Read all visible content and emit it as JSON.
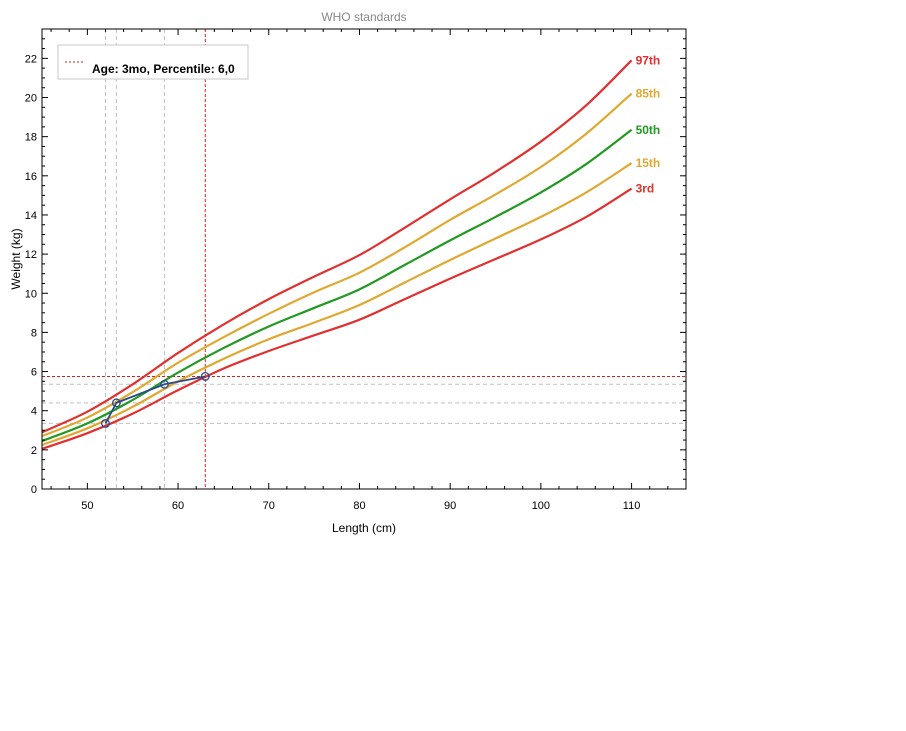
{
  "chart_data": {
    "type": "line",
    "title": "WHO standards",
    "xlabel": "Length (cm)",
    "ylabel": "Weight (kg)",
    "xlim": [
      45,
      116
    ],
    "ylim": [
      0,
      23.5
    ],
    "x_ticks": [
      50,
      60,
      70,
      80,
      90,
      100,
      110
    ],
    "y_ticks": [
      0,
      2,
      4,
      6,
      8,
      10,
      12,
      14,
      16,
      18,
      20,
      22
    ],
    "grid": false,
    "legend": {
      "position": "top-left",
      "entries": [
        "Age: 3mo, Percentile: 6,0"
      ]
    },
    "x": [
      45,
      50,
      55,
      60,
      65,
      70,
      75,
      80,
      85,
      90,
      95,
      100,
      105,
      110
    ],
    "series": [
      {
        "name": "97th",
        "color": "#e03030",
        "values": [
          2.9,
          3.95,
          5.35,
          6.95,
          8.4,
          9.7,
          10.85,
          11.95,
          13.35,
          14.8,
          16.2,
          17.75,
          19.6,
          21.9
        ]
      },
      {
        "name": "85th",
        "color": "#e0a830",
        "values": [
          2.7,
          3.65,
          4.95,
          6.45,
          7.75,
          8.95,
          10.05,
          11.05,
          12.35,
          13.75,
          15.05,
          16.45,
          18.15,
          20.2
        ]
      },
      {
        "name": "50th",
        "color": "#229922",
        "values": [
          2.45,
          3.35,
          4.55,
          5.95,
          7.2,
          8.3,
          9.25,
          10.2,
          11.45,
          12.7,
          13.9,
          15.15,
          16.6,
          18.35
        ]
      },
      {
        "name": "15th",
        "color": "#e0a830",
        "values": [
          2.25,
          3.1,
          4.2,
          5.5,
          6.65,
          7.65,
          8.5,
          9.4,
          10.55,
          11.7,
          12.8,
          13.9,
          15.15,
          16.65
        ]
      },
      {
        "name": "3rd",
        "color": "#e03030",
        "values": [
          2.05,
          2.85,
          3.85,
          5.05,
          6.15,
          7.05,
          7.85,
          8.65,
          9.7,
          10.75,
          11.75,
          12.75,
          13.9,
          15.35
        ]
      }
    ],
    "measurements": {
      "color": "#2a4a8a",
      "points": [
        {
          "x": 52,
          "y": 3.35
        },
        {
          "x": 53.2,
          "y": 4.4
        },
        {
          "x": 58.5,
          "y": 5.35
        },
        {
          "x": 63,
          "y": 5.75
        }
      ]
    },
    "highlight": {
      "x": 63,
      "y": 5.75,
      "color": "#cc2222"
    }
  }
}
